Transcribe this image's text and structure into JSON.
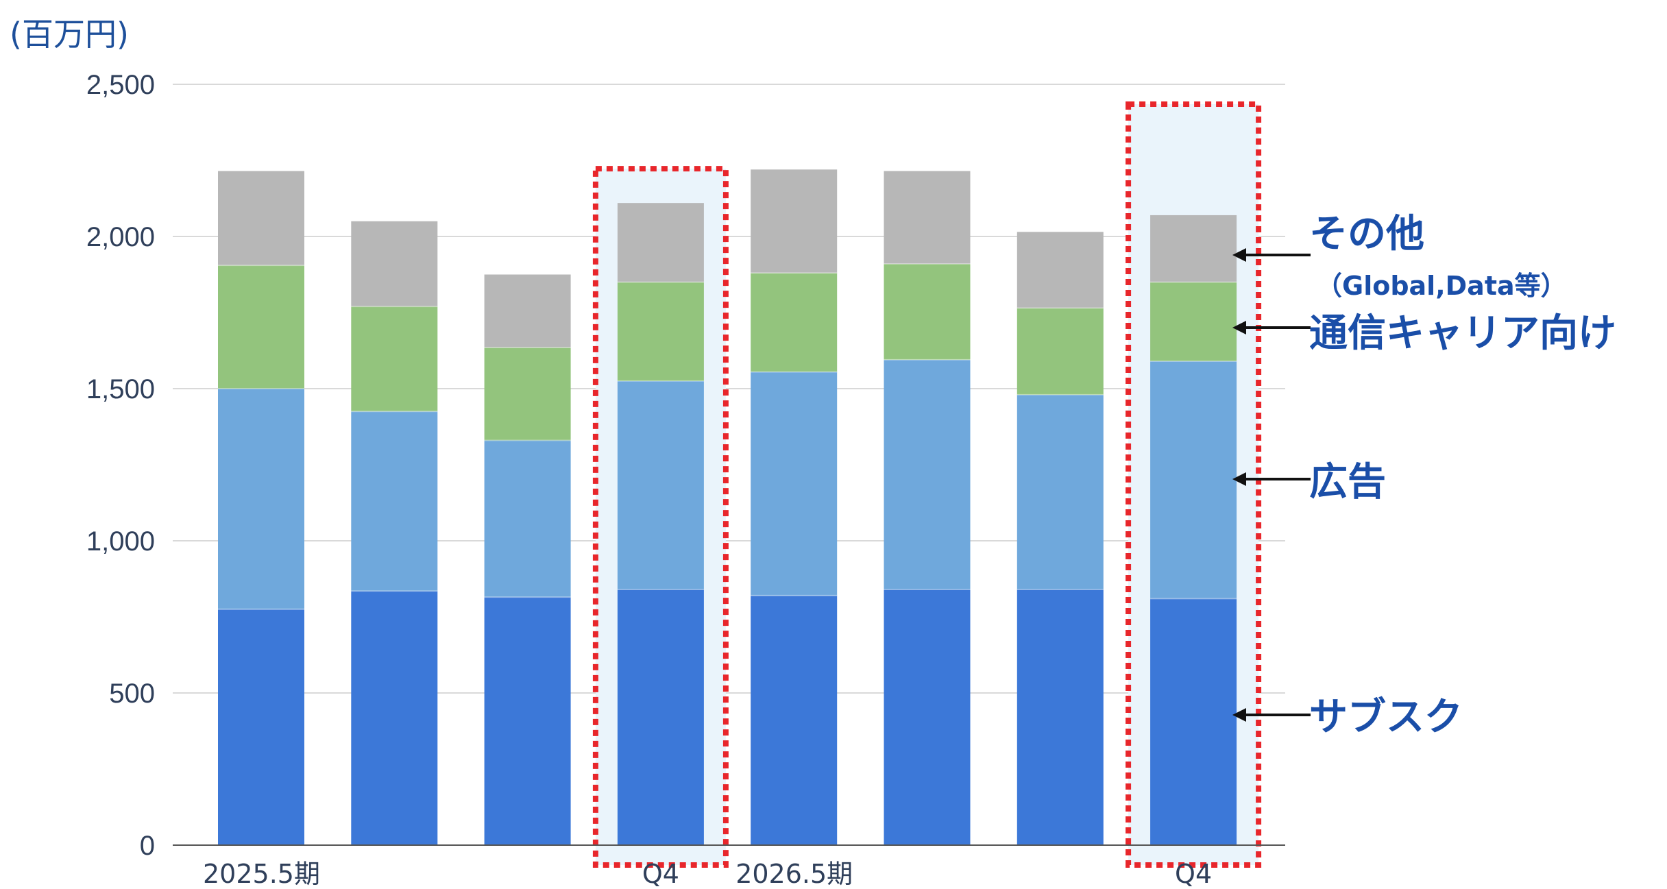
{
  "chart_data": {
    "type": "bar",
    "stacked": true,
    "unit_label": "(百万円)",
    "title": "",
    "xlabel": "",
    "ylabel": "",
    "ylim": [
      0,
      2500
    ],
    "y_ticks": [
      0,
      500,
      1000,
      1500,
      2000,
      2500
    ],
    "y_tick_labels": [
      "0",
      "500",
      "1,000",
      "1,500",
      "2,000",
      "2,500"
    ],
    "grid": true,
    "categories": [
      "2025.5期",
      "",
      "",
      "Q4",
      "2026.5期",
      "",
      "",
      "Q4"
    ],
    "highlighted_bars": [
      3,
      7
    ],
    "series": [
      {
        "name": "サブスク",
        "color": "#3c78d8",
        "values": [
          775,
          835,
          815,
          840,
          820,
          840,
          840,
          810
        ]
      },
      {
        "name": "広告",
        "color": "#6fa8dc",
        "values": [
          725,
          590,
          515,
          685,
          735,
          755,
          640,
          780
        ]
      },
      {
        "name": "通信キャリア向け",
        "color": "#93c47d",
        "values": [
          405,
          345,
          305,
          325,
          325,
          315,
          285,
          260
        ]
      },
      {
        "name": "その他",
        "color": "#b7b7b7",
        "values": [
          310,
          280,
          240,
          260,
          340,
          305,
          250,
          220
        ]
      }
    ],
    "legend": [
      {
        "label": "その他",
        "sub": "（Global,Data等）"
      },
      {
        "label": "通信キャリア向け"
      },
      {
        "label": "広告"
      },
      {
        "label": "サブスク"
      }
    ]
  }
}
